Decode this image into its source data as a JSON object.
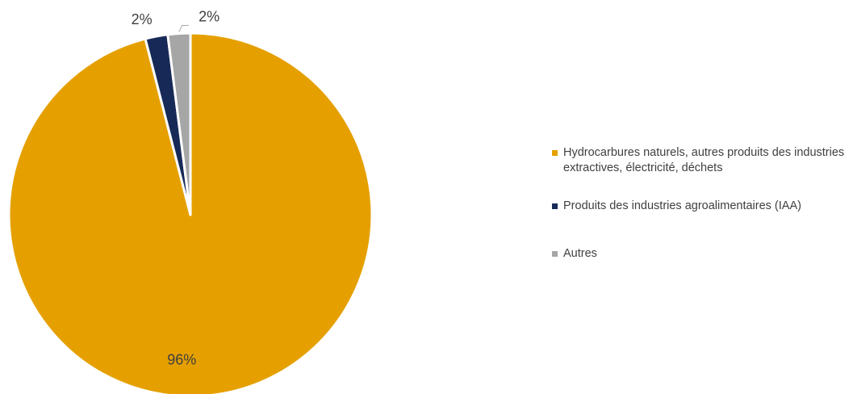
{
  "chart_data": {
    "type": "pie",
    "title": "",
    "slices": [
      {
        "label": "Hydrocarbures naturels, autres produits des industries extractives, électricité, déchets",
        "value": 96,
        "display": "96%",
        "color": "#E5A000"
      },
      {
        "label": "Produits des industries agroalimentaires (IAA)",
        "value": 2,
        "display": "2%",
        "color": "#172A57"
      },
      {
        "label": "Autres",
        "value": 2,
        "display": "2%",
        "color": "#A6A6A6"
      }
    ],
    "legend_position": "right"
  }
}
